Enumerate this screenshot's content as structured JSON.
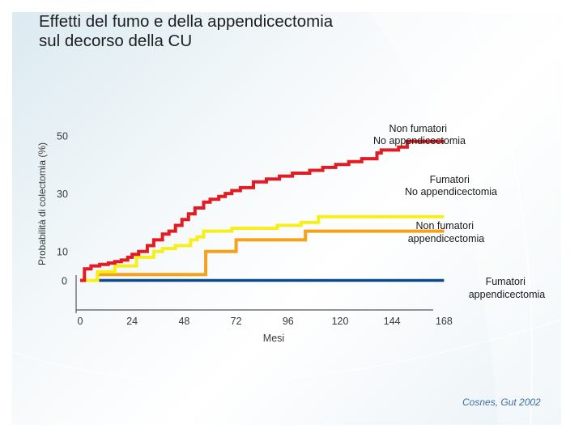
{
  "slide": {
    "title": "Effetti del fumo e della appendicectomia\nsul decorso della CU",
    "citation": "Cosnes, Gut 2002",
    "background_color": "#dbeaf1"
  },
  "chart_data": {
    "type": "line",
    "step": true,
    "title": "Effetti del fumo e della appendicectomia sul decorso della CU",
    "xlabel": "Mesi",
    "ylabel": "Probabilità di colectomia (%)",
    "xticks": [
      "0",
      "24",
      "48",
      "72",
      "96",
      "120",
      "144",
      "168"
    ],
    "yticks": [
      "0",
      "10",
      "30",
      "50"
    ],
    "xlim": [
      0,
      168
    ],
    "grid": false,
    "series": [
      {
        "name": "Non fumatori No appendicectomia",
        "label_lines": [
          "Non fumatori",
          "No appendicectomia"
        ],
        "color": "#e31b23",
        "points": [
          [
            0,
            0
          ],
          [
            2,
            0
          ],
          [
            2,
            4
          ],
          [
            5,
            4
          ],
          [
            5,
            5
          ],
          [
            9,
            5
          ],
          [
            9,
            5.5
          ],
          [
            13,
            5.5
          ],
          [
            13,
            6
          ],
          [
            16,
            6
          ],
          [
            16,
            6.5
          ],
          [
            19,
            6.5
          ],
          [
            19,
            7
          ],
          [
            22,
            7
          ],
          [
            22,
            8
          ],
          [
            24,
            8
          ],
          [
            24,
            9
          ],
          [
            27,
            9
          ],
          [
            27,
            10
          ],
          [
            31,
            10
          ],
          [
            31,
            12
          ],
          [
            34,
            12
          ],
          [
            34,
            14
          ],
          [
            38,
            14
          ],
          [
            38,
            16
          ],
          [
            41,
            16
          ],
          [
            41,
            17
          ],
          [
            44,
            17
          ],
          [
            44,
            19
          ],
          [
            47,
            19
          ],
          [
            47,
            21
          ],
          [
            50,
            21
          ],
          [
            50,
            23
          ],
          [
            53,
            23
          ],
          [
            53,
            25
          ],
          [
            57,
            25
          ],
          [
            57,
            27
          ],
          [
            60,
            27
          ],
          [
            60,
            28
          ],
          [
            64,
            28
          ],
          [
            64,
            29
          ],
          [
            67,
            29
          ],
          [
            67,
            30
          ],
          [
            70,
            30
          ],
          [
            70,
            31
          ],
          [
            74,
            31
          ],
          [
            74,
            32
          ],
          [
            80,
            32
          ],
          [
            80,
            34
          ],
          [
            86,
            34
          ],
          [
            86,
            35
          ],
          [
            92,
            35
          ],
          [
            92,
            36
          ],
          [
            98,
            36
          ],
          [
            98,
            37
          ],
          [
            106,
            37
          ],
          [
            106,
            38
          ],
          [
            112,
            38
          ],
          [
            112,
            39
          ],
          [
            118,
            39
          ],
          [
            118,
            40
          ],
          [
            124,
            40
          ],
          [
            124,
            41
          ],
          [
            130,
            41
          ],
          [
            130,
            42
          ],
          [
            137,
            42
          ],
          [
            137,
            44
          ],
          [
            139,
            44
          ],
          [
            139,
            45
          ],
          [
            147,
            45
          ],
          [
            147,
            46
          ],
          [
            151,
            46
          ],
          [
            151,
            48
          ],
          [
            168,
            48
          ]
        ]
      },
      {
        "name": "Fumatori No appendicectomia",
        "label_lines": [
          "Fumatori",
          "No appendicectomia"
        ],
        "color": "#f7ef1a",
        "points": [
          [
            0,
            0
          ],
          [
            8,
            0
          ],
          [
            8,
            3
          ],
          [
            16,
            3
          ],
          [
            16,
            5
          ],
          [
            26,
            5
          ],
          [
            26,
            8
          ],
          [
            34,
            8
          ],
          [
            34,
            10
          ],
          [
            38,
            10
          ],
          [
            38,
            11
          ],
          [
            44,
            11
          ],
          [
            44,
            12
          ],
          [
            51,
            12
          ],
          [
            51,
            14
          ],
          [
            54,
            14
          ],
          [
            54,
            15
          ],
          [
            57,
            15
          ],
          [
            57,
            17
          ],
          [
            70,
            17
          ],
          [
            70,
            18
          ],
          [
            91,
            18
          ],
          [
            91,
            19
          ],
          [
            102,
            19
          ],
          [
            102,
            20
          ],
          [
            110,
            20
          ],
          [
            110,
            22
          ],
          [
            168,
            22
          ]
        ]
      },
      {
        "name": "Non fumatori appendicectomia",
        "label_lines": [
          "Non fumatori",
          "appendicectomia"
        ],
        "color": "#f7a11a",
        "points": [
          [
            0,
            0
          ],
          [
            8,
            0
          ],
          [
            8,
            2
          ],
          [
            58,
            2
          ],
          [
            58,
            10
          ],
          [
            72,
            10
          ],
          [
            72,
            14
          ],
          [
            104,
            14
          ],
          [
            104,
            17
          ],
          [
            168,
            17
          ]
        ]
      },
      {
        "name": "Fumatori appendicectomia",
        "label_lines": [
          "Fumatori",
          "appendicectomia"
        ],
        "color": "#0d4a8c",
        "points": [
          [
            0,
            0
          ],
          [
            168,
            0
          ]
        ]
      }
    ]
  }
}
